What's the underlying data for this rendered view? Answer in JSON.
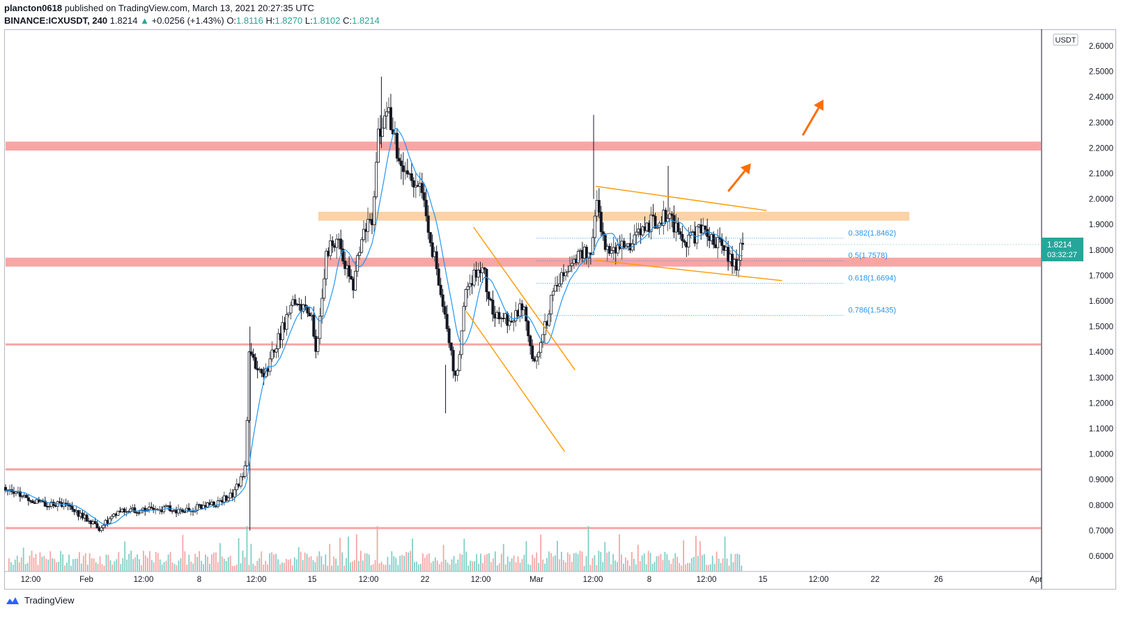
{
  "header": {
    "author": "plancton0618",
    "published": "published on TradingView.com, March 13, 2021 20:27:35 UTC"
  },
  "symbol_bar": {
    "symbol": "BINANCE:ICXUSDT, 240",
    "last": "1.8214",
    "change": "+0.0256 (+1.43%)",
    "open_label": "O:",
    "open": "1.8116",
    "high_label": "H:",
    "high": "1.8270",
    "low_label": "L:",
    "low": "1.8102",
    "close_label": "C:",
    "close": "1.8214"
  },
  "price_label": {
    "price": "1.8214",
    "countdown": "03:32:27"
  },
  "currency": "USDT",
  "footer": {
    "brand": "TradingView"
  },
  "colors": {
    "up": "#26a69a",
    "down": "#ef5350",
    "candle": "#131722",
    "ma": "#2196f3",
    "zone_red": "#f8a5a5",
    "zone_orange": "#fbd3a7",
    "trend": "#ff9800",
    "fib": "#2196f3",
    "arrow": "#ff6d00",
    "price_tag": "#26a69a"
  },
  "chart_data": {
    "type": "candlestick",
    "symbol": "BINANCE:ICXUSDT",
    "interval": "240",
    "ylim": [
      0.54,
      2.66
    ],
    "y_ticks": [
      "2.6000",
      "2.5000",
      "2.4000",
      "2.3000",
      "2.2000",
      "2.1000",
      "2.0000",
      "1.9000",
      "1.8000",
      "1.7000",
      "1.6000",
      "1.5000",
      "1.4000",
      "1.3000",
      "1.2000",
      "1.1000",
      "1.0000",
      "0.9000",
      "0.8000",
      "0.7000",
      "0.6000"
    ],
    "x_ticks": [
      "12:00",
      "Feb",
      "12:00",
      "8",
      "12:00",
      "15",
      "12:00",
      "22",
      "12:00",
      "Mar",
      "12:00",
      "8",
      "12:00",
      "15",
      "12:00",
      "22",
      "26",
      "Apr"
    ],
    "horizontal_zones": [
      {
        "kind": "band",
        "from": 2.19,
        "to": 2.225,
        "color": "red"
      },
      {
        "kind": "band",
        "from": 1.915,
        "to": 1.95,
        "color": "orange"
      },
      {
        "kind": "band",
        "from": 1.735,
        "to": 1.77,
        "color": "red"
      },
      {
        "kind": "line",
        "value": 1.43,
        "color": "red"
      },
      {
        "kind": "line",
        "value": 0.94,
        "color": "red"
      },
      {
        "kind": "line",
        "value": 0.71,
        "color": "red"
      }
    ],
    "fibonacci": [
      {
        "ratio": "0.382",
        "label": "0.382(1.8462)",
        "price": 1.8462
      },
      {
        "ratio": "0.5",
        "label": "0.5(1.7578)",
        "price": 1.7578
      },
      {
        "ratio": "0.618",
        "label": "0.618(1.6694)",
        "price": 1.6694
      },
      {
        "ratio": "0.786",
        "label": "0.786(1.5435)",
        "price": 1.5435
      }
    ],
    "trend_lines": [
      {
        "name": "falling-channel-upper",
        "from": [
          0.452,
          1.89
        ],
        "to": [
          0.55,
          1.33
        ]
      },
      {
        "name": "falling-channel-lower",
        "from": [
          0.445,
          1.56
        ],
        "to": [
          0.54,
          1.01
        ]
      },
      {
        "name": "flag-upper",
        "from": [
          0.57,
          2.05
        ],
        "to": [
          0.735,
          1.955
        ]
      },
      {
        "name": "flag-lower",
        "from": [
          0.57,
          1.76
        ],
        "to": [
          0.75,
          1.68
        ]
      }
    ],
    "arrows": [
      {
        "from": [
          0.698,
          2.03
        ],
        "to": [
          0.72,
          2.14
        ]
      },
      {
        "from": [
          0.77,
          2.25
        ],
        "to": [
          0.79,
          2.39
        ]
      }
    ],
    "candles_path": [
      [
        0,
        0.87
      ],
      [
        0.03,
        0.81
      ],
      [
        0.06,
        0.8
      ],
      [
        0.08,
        0.74
      ],
      [
        0.09,
        0.71
      ],
      [
        0.11,
        0.77
      ],
      [
        0.14,
        0.79
      ],
      [
        0.17,
        0.78
      ],
      [
        0.2,
        0.8
      ],
      [
        0.22,
        0.84
      ],
      [
        0.232,
        0.95
      ],
      [
        0.235,
        1.39
      ],
      [
        0.25,
        1.3
      ],
      [
        0.26,
        1.42
      ],
      [
        0.28,
        1.61
      ],
      [
        0.295,
        1.55
      ],
      [
        0.3,
        1.4
      ],
      [
        0.31,
        1.8
      ],
      [
        0.32,
        1.85
      ],
      [
        0.335,
        1.65
      ],
      [
        0.345,
        1.85
      ],
      [
        0.355,
        1.93
      ],
      [
        0.36,
        2.25
      ],
      [
        0.37,
        2.35
      ],
      [
        0.38,
        2.15
      ],
      [
        0.4,
        2.05
      ],
      [
        0.415,
        1.75
      ],
      [
        0.425,
        1.55
      ],
      [
        0.435,
        1.28
      ],
      [
        0.445,
        1.65
      ],
      [
        0.46,
        1.75
      ],
      [
        0.47,
        1.55
      ],
      [
        0.49,
        1.52
      ],
      [
        0.5,
        1.6
      ],
      [
        0.51,
        1.35
      ],
      [
        0.52,
        1.48
      ],
      [
        0.53,
        1.65
      ],
      [
        0.545,
        1.72
      ],
      [
        0.555,
        1.8
      ],
      [
        0.565,
        1.77
      ],
      [
        0.57,
        1.98
      ],
      [
        0.58,
        1.82
      ],
      [
        0.6,
        1.8
      ],
      [
        0.62,
        1.9
      ],
      [
        0.64,
        1.93
      ],
      [
        0.655,
        1.83
      ],
      [
        0.67,
        1.87
      ],
      [
        0.685,
        1.84
      ],
      [
        0.695,
        1.8
      ],
      [
        0.705,
        1.74
      ],
      [
        0.712,
        1.82
      ]
    ],
    "last_price": 1.8214
  }
}
